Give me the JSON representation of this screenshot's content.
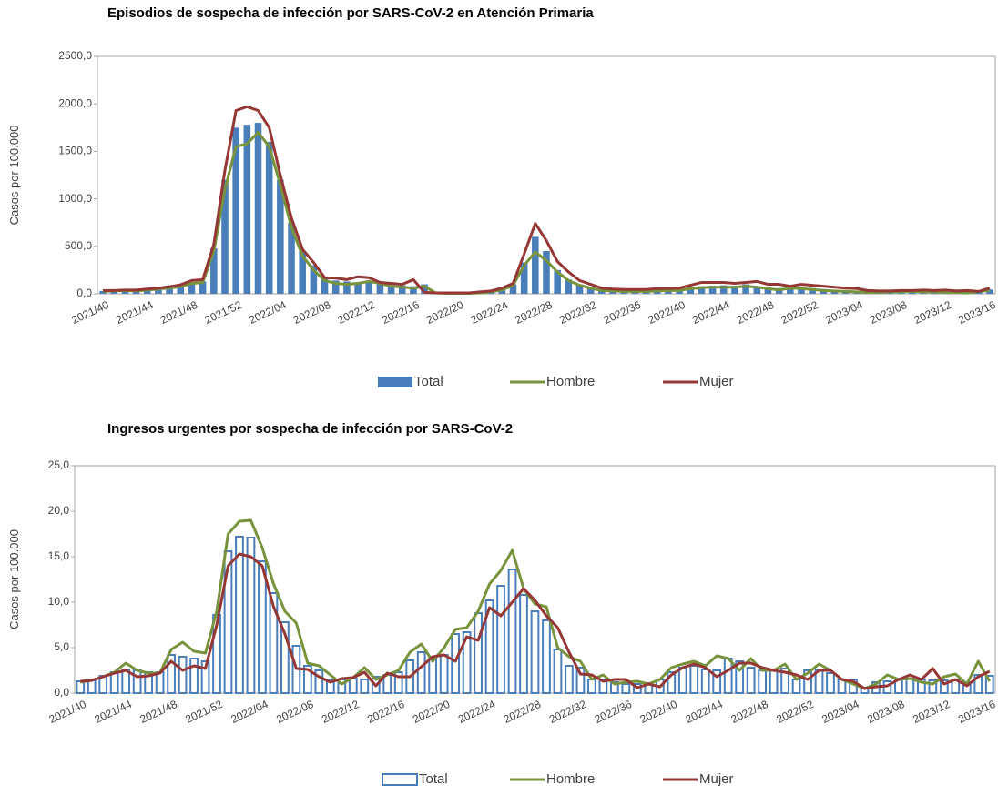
{
  "chart_data": [
    {
      "type": "combo",
      "title": "Episodios de sospecha de infección por SARS-CoV-2 en Atención Primaria",
      "y_label": "Casos por 100.000",
      "grid": false,
      "bar_style": "solid",
      "ylim": [
        0,
        2500
      ],
      "yticks": [
        {
          "value": 0,
          "label": "0,0"
        },
        {
          "value": 500,
          "label": "500,0"
        },
        {
          "value": 1000,
          "label": "1000,0"
        },
        {
          "value": 1500,
          "label": "1500,0"
        },
        {
          "value": 2000,
          "label": "2000,0"
        },
        {
          "value": 2500,
          "label": "2500,0"
        }
      ],
      "categories": [
        "2021/40",
        null,
        null,
        null,
        "2021/44",
        null,
        null,
        null,
        "2021/48",
        null,
        null,
        null,
        "2021/52",
        null,
        null,
        null,
        "2022/04",
        null,
        null,
        null,
        "2022/08",
        null,
        null,
        null,
        "2022/12",
        null,
        null,
        null,
        "2022/16",
        null,
        null,
        null,
        "2022/20",
        null,
        null,
        null,
        "2022/24",
        null,
        null,
        null,
        "2022/28",
        null,
        null,
        null,
        "2022/32",
        null,
        null,
        null,
        "2022/36",
        null,
        null,
        null,
        "2022/40",
        null,
        null,
        null,
        "2022/44",
        null,
        null,
        null,
        "2022/48",
        null,
        null,
        null,
        "2022/52",
        null,
        null,
        null,
        "2023/04",
        null,
        null,
        null,
        "2023/08",
        null,
        null,
        null,
        "2023/12",
        null,
        null,
        null,
        "2023/16"
      ],
      "series": [
        {
          "name": "Total",
          "type": "bar",
          "color": "#4a7ebb",
          "values": [
            30,
            35,
            40,
            40,
            50,
            60,
            70,
            90,
            120,
            130,
            480,
            1200,
            1750,
            1780,
            1800,
            1600,
            1200,
            750,
            450,
            300,
            180,
            140,
            130,
            120,
            140,
            130,
            100,
            90,
            80,
            100,
            15,
            10,
            10,
            10,
            15,
            25,
            50,
            100,
            330,
            600,
            450,
            250,
            150,
            100,
            70,
            40,
            35,
            30,
            30,
            30,
            35,
            40,
            45,
            70,
            80,
            85,
            90,
            85,
            100,
            80,
            70,
            60,
            70,
            65,
            60,
            50,
            40,
            35,
            25,
            20,
            20,
            25,
            25,
            30,
            25,
            25,
            20,
            20,
            15,
            30,
            45
          ]
        },
        {
          "name": "Hombre",
          "type": "line",
          "color": "#77933c",
          "values": [
            25,
            30,
            35,
            30,
            40,
            50,
            60,
            75,
            110,
            120,
            450,
            1100,
            1550,
            1580,
            1700,
            1550,
            1150,
            700,
            400,
            250,
            140,
            110,
            100,
            110,
            130,
            110,
            80,
            70,
            60,
            80,
            10,
            5,
            5,
            5,
            10,
            20,
            40,
            90,
            300,
            440,
            350,
            230,
            140,
            90,
            60,
            35,
            30,
            25,
            25,
            25,
            30,
            35,
            35,
            55,
            65,
            70,
            70,
            70,
            80,
            70,
            55,
            40,
            60,
            55,
            45,
            35,
            30,
            25,
            20,
            15,
            15,
            20,
            20,
            25,
            20,
            20,
            15,
            15,
            10,
            25,
            35
          ]
        },
        {
          "name": "Mujer",
          "type": "line",
          "color": "#953735",
          "values": [
            35,
            35,
            40,
            40,
            50,
            60,
            75,
            95,
            140,
            150,
            520,
            1300,
            1930,
            1970,
            1930,
            1750,
            1250,
            800,
            470,
            330,
            170,
            165,
            150,
            180,
            170,
            120,
            110,
            100,
            150,
            15,
            10,
            10,
            10,
            10,
            20,
            30,
            60,
            110,
            420,
            740,
            560,
            340,
            230,
            140,
            100,
            60,
            50,
            45,
            45,
            45,
            55,
            55,
            60,
            90,
            120,
            120,
            120,
            110,
            120,
            130,
            100,
            100,
            80,
            100,
            90,
            80,
            70,
            60,
            55,
            35,
            30,
            30,
            35,
            35,
            40,
            35,
            40,
            30,
            35,
            25,
            60
          ]
        }
      ]
    },
    {
      "type": "combo",
      "title": "Ingresos urgentes por sospecha de infección por SARS-CoV-2",
      "y_label": "Casos por 100.000",
      "grid": false,
      "bar_style": "outline",
      "ylim": [
        0,
        25
      ],
      "yticks": [
        {
          "value": 0,
          "label": "0,0"
        },
        {
          "value": 5,
          "label": "5,0"
        },
        {
          "value": 10,
          "label": "10,0"
        },
        {
          "value": 15,
          "label": "15,0"
        },
        {
          "value": 20,
          "label": "20,0"
        },
        {
          "value": 25,
          "label": "25,0"
        }
      ],
      "categories": [
        "2021/40",
        null,
        null,
        null,
        "2021/44",
        null,
        null,
        null,
        "2021/48",
        null,
        null,
        null,
        "2021/52",
        null,
        null,
        null,
        "2022/04",
        null,
        null,
        null,
        "2022/08",
        null,
        null,
        null,
        "2022/12",
        null,
        null,
        null,
        "2022/16",
        null,
        null,
        null,
        "2022/20",
        null,
        null,
        null,
        "2022/24",
        null,
        null,
        null,
        "2022/28",
        null,
        null,
        null,
        "2022/32",
        null,
        null,
        null,
        "2022/36",
        null,
        null,
        null,
        "2022/40",
        null,
        null,
        null,
        "2022/44",
        null,
        null,
        null,
        "2022/48",
        null,
        null,
        null,
        "2022/52",
        null,
        null,
        null,
        "2023/04",
        null,
        null,
        null,
        "2023/08",
        null,
        null,
        null,
        "2023/12",
        null,
        null,
        null,
        "2023/16"
      ],
      "series": [
        {
          "name": "Total",
          "type": "bar",
          "color": "#4a7ebb",
          "values": [
            1.3,
            1.4,
            1.9,
            2.3,
            2.5,
            2.5,
            2.3,
            2.3,
            4.2,
            4.0,
            3.8,
            3.5,
            8.6,
            15.6,
            17.2,
            17.1,
            14.5,
            11.0,
            7.8,
            5.2,
            3.0,
            2.5,
            1.5,
            1.5,
            1.6,
            1.5,
            1.8,
            2.0,
            2.3,
            3.6,
            4.5,
            4.0,
            4.2,
            6.5,
            6.7,
            8.8,
            10.2,
            11.8,
            13.6,
            10.8,
            9.0,
            8.0,
            4.8,
            3.0,
            2.8,
            1.5,
            1.5,
            1.2,
            1.0,
            1.0,
            1.1,
            1.5,
            2.3,
            2.8,
            3.0,
            2.6,
            2.5,
            3.8,
            3.5,
            2.8,
            2.5,
            2.5,
            2.7,
            1.5,
            2.5,
            2.6,
            2.2,
            1.5,
            1.5,
            0.6,
            1.2,
            1.3,
            1.5,
            1.6,
            1.5,
            1.4,
            1.4,
            1.4,
            1.2,
            2.0,
            1.9
          ]
        },
        {
          "name": "Hombre",
          "type": "line",
          "color": "#77933c",
          "values": [
            1.2,
            1.4,
            1.8,
            2.3,
            3.3,
            2.5,
            2.2,
            2.2,
            4.8,
            5.6,
            4.6,
            4.4,
            9.0,
            17.5,
            18.9,
            19.0,
            16.0,
            12.0,
            9.0,
            7.7,
            3.3,
            3.0,
            2.0,
            1.0,
            1.7,
            2.8,
            1.5,
            2.0,
            2.5,
            4.5,
            5.4,
            3.5,
            5.0,
            7.0,
            7.2,
            9.0,
            12.0,
            13.5,
            15.7,
            11.5,
            9.8,
            9.5,
            5.0,
            4.0,
            3.5,
            1.5,
            2.0,
            1.0,
            1.2,
            1.3,
            1.0,
            1.5,
            2.8,
            3.2,
            3.5,
            3.0,
            4.1,
            3.8,
            2.5,
            3.8,
            2.5,
            2.5,
            3.2,
            1.5,
            2.2,
            3.2,
            2.5,
            1.5,
            1.0,
            0.5,
            1.0,
            2.0,
            1.5,
            1.6,
            1.2,
            1.0,
            1.8,
            2.1,
            1.0,
            3.5,
            1.3
          ]
        },
        {
          "name": "Mujer",
          "type": "line",
          "color": "#953735",
          "values": [
            1.3,
            1.4,
            1.8,
            2.2,
            2.5,
            1.8,
            1.9,
            2.2,
            3.5,
            2.5,
            3.0,
            2.7,
            7.5,
            14.0,
            15.3,
            15.0,
            14.0,
            9.5,
            6.5,
            2.7,
            2.6,
            1.8,
            1.2,
            1.6,
            1.7,
            2.3,
            0.8,
            2.2,
            1.8,
            1.8,
            2.9,
            4.0,
            4.2,
            3.5,
            6.2,
            5.8,
            9.4,
            8.5,
            10.0,
            11.5,
            10.2,
            8.5,
            7.2,
            4.5,
            2.1,
            2.0,
            1.3,
            1.5,
            1.5,
            0.6,
            1.0,
            0.7,
            2.0,
            2.8,
            3.2,
            2.8,
            1.8,
            2.5,
            3.3,
            3.3,
            2.8,
            2.5,
            2.3,
            2.0,
            1.5,
            2.5,
            2.5,
            1.5,
            1.3,
            0.5,
            0.7,
            0.8,
            1.5,
            2.0,
            1.5,
            2.7,
            1.0,
            1.5,
            0.8,
            1.8,
            2.4
          ]
        }
      ]
    }
  ]
}
